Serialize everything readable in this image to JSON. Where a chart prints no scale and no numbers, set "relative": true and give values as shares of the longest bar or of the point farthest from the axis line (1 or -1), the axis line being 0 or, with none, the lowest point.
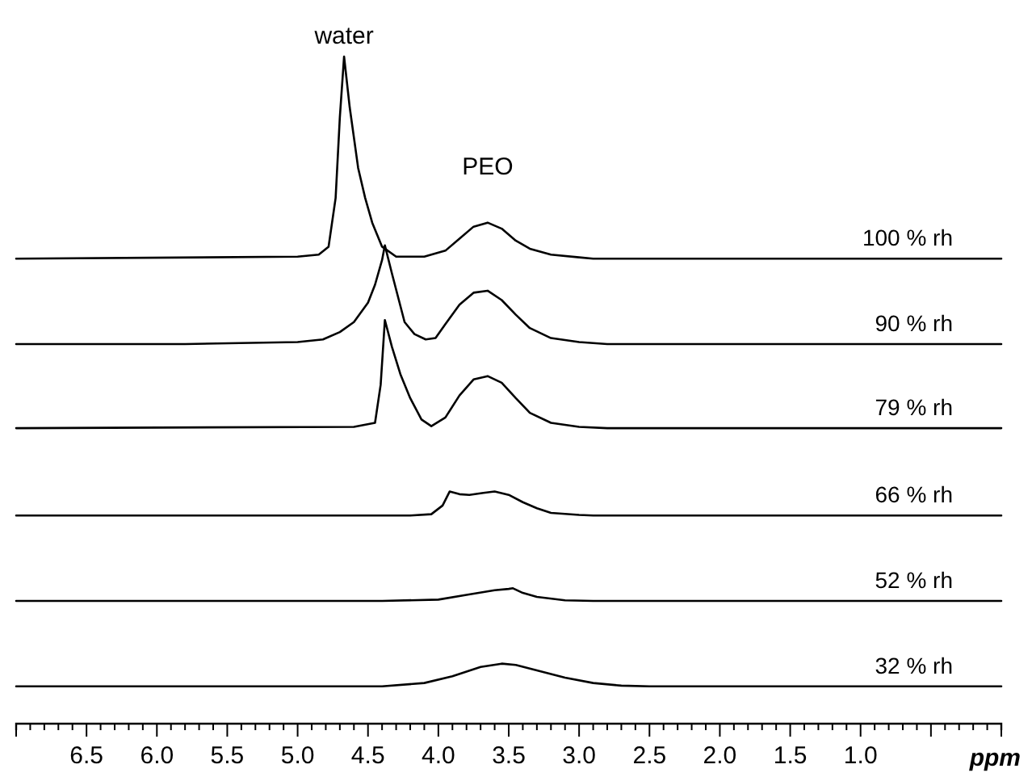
{
  "chart_data": {
    "type": "line",
    "relative": true,
    "legend": false,
    "tick_labels": "x",
    "xlim": [
      7.0,
      0.0
    ],
    "xlabel": "ppm",
    "annotations": [
      {
        "text": "water",
        "x": 4.67,
        "y": 1.0
      },
      {
        "text": "PEO",
        "x": 3.65,
        "y": 0.751
      }
    ],
    "xticks": [
      {
        "value": 7.0,
        "label": null
      },
      {
        "value": 6.9,
        "label": null
      },
      {
        "value": 6.8,
        "label": null
      },
      {
        "value": 6.7,
        "label": null
      },
      {
        "value": 6.6,
        "label": null
      },
      6.5,
      {
        "value": 6.4,
        "label": null
      },
      {
        "value": 6.3,
        "label": null
      },
      {
        "value": 6.2,
        "label": null
      },
      {
        "value": 6.1,
        "label": null
      },
      {
        "value": 6.0,
        "label": "6.0"
      },
      {
        "value": 5.9,
        "label": null
      },
      {
        "value": 5.8,
        "label": null
      },
      {
        "value": 5.7,
        "label": null
      },
      {
        "value": 5.6,
        "label": null
      },
      5.5,
      {
        "value": 5.4,
        "label": null
      },
      {
        "value": 5.3,
        "label": null
      },
      {
        "value": 5.2,
        "label": null
      },
      {
        "value": 5.1,
        "label": null
      },
      {
        "value": 5.0,
        "label": "5.0"
      },
      {
        "value": 4.9,
        "label": null
      },
      {
        "value": 4.8,
        "label": null
      },
      {
        "value": 4.7,
        "label": null
      },
      {
        "value": 4.6,
        "label": null
      },
      4.5,
      {
        "value": 4.4,
        "label": null
      },
      {
        "value": 4.3,
        "label": null
      },
      {
        "value": 4.2,
        "label": null
      },
      {
        "value": 4.1,
        "label": null
      },
      {
        "value": 4.0,
        "label": "4.0"
      },
      {
        "value": 3.9,
        "label": null
      },
      {
        "value": 3.8,
        "label": null
      },
      {
        "value": 3.7,
        "label": null
      },
      {
        "value": 3.6,
        "label": null
      },
      3.5,
      {
        "value": 3.4,
        "label": null
      },
      {
        "value": 3.3,
        "label": null
      },
      {
        "value": 3.2,
        "label": null
      },
      {
        "value": 3.1,
        "label": null
      },
      {
        "value": 3.0,
        "label": "3.0"
      },
      {
        "value": 2.9,
        "label": null
      },
      {
        "value": 2.8,
        "label": null
      },
      {
        "value": 2.7,
        "label": null
      },
      {
        "value": 2.6,
        "label": null
      },
      2.5,
      {
        "value": 2.4,
        "label": null
      },
      {
        "value": 2.3,
        "label": null
      },
      {
        "value": 2.2,
        "label": null
      },
      {
        "value": 2.1,
        "label": null
      },
      {
        "value": 2.0,
        "label": "2.0"
      },
      {
        "value": 1.9,
        "label": null
      },
      {
        "value": 1.8,
        "label": null
      },
      {
        "value": 1.7,
        "label": null
      },
      {
        "value": 1.6,
        "label": null
      },
      1.5,
      {
        "value": 1.4,
        "label": null
      },
      {
        "value": 1.3,
        "label": null
      },
      {
        "value": 1.2,
        "label": null
      },
      {
        "value": 1.1,
        "label": null
      },
      {
        "value": 1.0,
        "label": "1.0"
      },
      {
        "value": 0.9,
        "label": null
      },
      {
        "value": 0.8,
        "label": null
      },
      {
        "value": 0.7,
        "label": null
      },
      {
        "value": 0.6,
        "label": null
      },
      {
        "value": 0.5,
        "label": null
      },
      {
        "value": 0.4,
        "label": null
      },
      {
        "value": 0.3,
        "label": null
      },
      {
        "value": 0.2,
        "label": null
      },
      {
        "value": 0.1,
        "label": null
      },
      {
        "value": 0.0,
        "label": null
      }
    ],
    "series": [
      {
        "name": "100 % rh",
        "color": "#000000",
        "x": [
          7.0,
          5.0,
          4.85,
          4.78,
          4.73,
          4.7,
          4.67,
          4.63,
          4.57,
          4.52,
          4.47,
          4.4,
          4.3,
          4.1,
          3.95,
          3.85,
          3.75,
          3.65,
          3.55,
          3.45,
          3.35,
          3.2,
          3.0,
          2.9,
          0.0
        ],
        "values": [
          0.697,
          0.7,
          0.703,
          0.715,
          0.788,
          0.909,
          1.0,
          0.924,
          0.833,
          0.788,
          0.751,
          0.715,
          0.7,
          0.7,
          0.709,
          0.727,
          0.745,
          0.751,
          0.742,
          0.724,
          0.712,
          0.703,
          0.699,
          0.697,
          0.697
        ]
      },
      {
        "name": "90 % rh",
        "color": "#000000",
        "x": [
          7.0,
          5.8,
          5.0,
          4.82,
          4.7,
          4.6,
          4.5,
          4.45,
          4.4,
          4.38,
          4.33,
          4.24,
          4.17,
          4.09,
          4.02,
          3.95,
          3.85,
          3.75,
          3.65,
          3.55,
          3.45,
          3.35,
          3.2,
          3.0,
          2.8,
          0.0
        ],
        "values": [
          0.569,
          0.569,
          0.572,
          0.576,
          0.587,
          0.602,
          0.631,
          0.658,
          0.695,
          0.717,
          0.675,
          0.602,
          0.584,
          0.576,
          0.578,
          0.599,
          0.628,
          0.646,
          0.649,
          0.635,
          0.613,
          0.593,
          0.578,
          0.572,
          0.569,
          0.569
        ]
      },
      {
        "name": "79 % rh",
        "color": "#000000",
        "x": [
          7.0,
          4.6,
          4.45,
          4.41,
          4.38,
          4.33,
          4.27,
          4.2,
          4.12,
          4.05,
          3.95,
          3.85,
          3.75,
          3.65,
          3.55,
          3.45,
          3.35,
          3.2,
          3.0,
          2.8,
          0.0
        ],
        "values": [
          0.443,
          0.445,
          0.451,
          0.508,
          0.605,
          0.565,
          0.524,
          0.488,
          0.456,
          0.446,
          0.459,
          0.492,
          0.516,
          0.521,
          0.511,
          0.488,
          0.466,
          0.451,
          0.445,
          0.443,
          0.443
        ]
      },
      {
        "name": "66 % rh",
        "color": "#000000",
        "x": [
          7.0,
          4.6,
          4.2,
          4.05,
          3.97,
          3.92,
          3.85,
          3.78,
          3.68,
          3.6,
          3.5,
          3.4,
          3.3,
          3.2,
          3.0,
          2.9,
          0.0
        ],
        "values": [
          0.312,
          0.312,
          0.312,
          0.314,
          0.327,
          0.348,
          0.344,
          0.343,
          0.346,
          0.348,
          0.343,
          0.332,
          0.323,
          0.316,
          0.313,
          0.312,
          0.312
        ]
      },
      {
        "name": "52 % rh",
        "color": "#000000",
        "x": [
          7.0,
          4.4,
          4.0,
          3.8,
          3.6,
          3.5,
          3.47,
          3.4,
          3.3,
          3.1,
          2.9,
          0.0
        ],
        "values": [
          0.184,
          0.184,
          0.186,
          0.193,
          0.2,
          0.202,
          0.203,
          0.196,
          0.19,
          0.185,
          0.184,
          0.184
        ]
      },
      {
        "name": "32 % rh",
        "color": "#000000",
        "x": [
          7.0,
          5.0,
          4.4,
          4.1,
          3.9,
          3.7,
          3.55,
          3.45,
          3.3,
          3.1,
          2.9,
          2.7,
          2.5,
          0.0
        ],
        "values": [
          0.056,
          0.056,
          0.056,
          0.061,
          0.071,
          0.085,
          0.09,
          0.088,
          0.08,
          0.069,
          0.061,
          0.057,
          0.056,
          0.056
        ]
      }
    ]
  }
}
